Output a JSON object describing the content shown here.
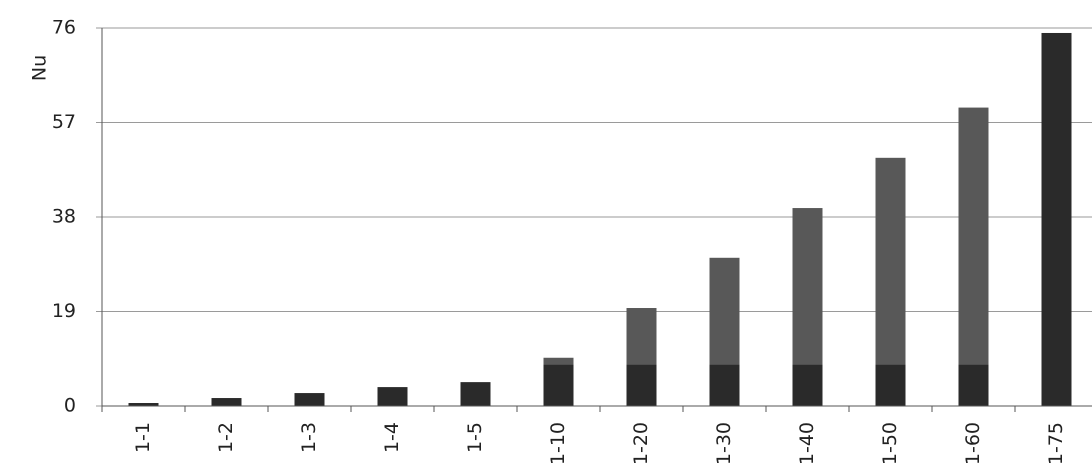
{
  "chart_data": {
    "type": "bar",
    "stacked": true,
    "y_label": "Nu",
    "categories": [
      "1-1",
      "1-2",
      "1-3",
      "1-4",
      "1-5",
      "1-10",
      "1-20",
      "1-30",
      "1-40",
      "1-50",
      "1-60",
      "1-75"
    ],
    "series": [
      {
        "color": "#2a2a2a",
        "values": [
          0.6,
          1.6,
          2.6,
          3.8,
          4.8,
          8.4,
          8.4,
          8.4,
          8.4,
          8.4,
          8.4,
          75
        ]
      },
      {
        "color": "#585858",
        "values": [
          0,
          0,
          0,
          0,
          0,
          1.3,
          11.3,
          21.4,
          31.4,
          41.5,
          51.6,
          0
        ]
      }
    ],
    "ylim": [
      0,
      76
    ],
    "yticks": [
      0,
      19,
      38,
      57,
      76
    ],
    "grid": true
  }
}
